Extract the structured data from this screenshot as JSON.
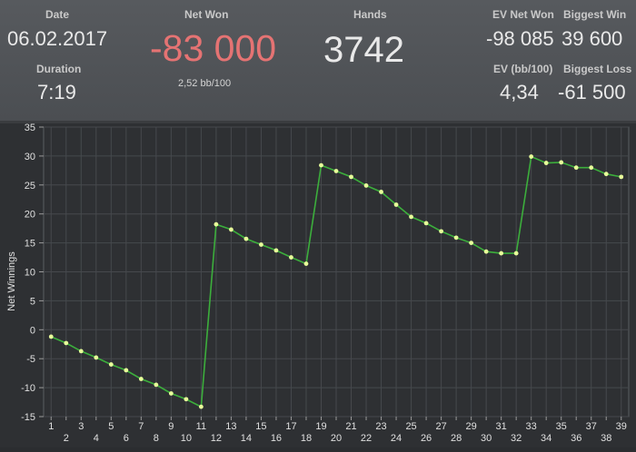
{
  "stats": {
    "date_label": "Date",
    "date_value": "06.02.2017",
    "duration_label": "Duration",
    "duration_value": "7:19",
    "net_won_label": "Net Won",
    "net_won_value": "-83 000",
    "net_won_sub": "2,52 bb/100",
    "hands_label": "Hands",
    "hands_value": "3742",
    "ev_net_won_label": "EV Net Won",
    "ev_net_won_value": "-98 085",
    "biggest_win_label": "Biggest Win",
    "biggest_win_value": "39 600",
    "ev_bb_label": "EV (bb/100)",
    "ev_bb_value": "4,34",
    "biggest_loss_label": "Biggest Loss",
    "biggest_loss_value": "-61 500"
  },
  "colors": {
    "negative": "#e57373",
    "line": "#3cae3c",
    "point": "#e8ff9a"
  },
  "chart_data": {
    "type": "line",
    "ylabel": "Net Winnings",
    "xlabel": "",
    "ylim": [
      -15,
      35
    ],
    "y_ticks": [
      -15,
      -10,
      -5,
      0,
      5,
      10,
      15,
      20,
      25,
      30,
      35
    ],
    "x_ticks": [
      1,
      2,
      3,
      4,
      5,
      6,
      7,
      8,
      9,
      10,
      11,
      12,
      13,
      14,
      15,
      16,
      17,
      18,
      19,
      20,
      21,
      22,
      23,
      24,
      25,
      26,
      27,
      28,
      29,
      30,
      31,
      32,
      33,
      34,
      35,
      36,
      37,
      38,
      39
    ],
    "grid": true,
    "series": [
      {
        "x": [
          1,
          2,
          3,
          4,
          5,
          6,
          7,
          8,
          9,
          10,
          11,
          12,
          13,
          14,
          15,
          16,
          17,
          18,
          19,
          20,
          21,
          22,
          23,
          24,
          25,
          26,
          27,
          28,
          29,
          30,
          31,
          32,
          33,
          34,
          35,
          36,
          37,
          38,
          39
        ],
        "values": [
          -1.2,
          -2.3,
          -3.7,
          -4.8,
          -6.0,
          -7.0,
          -8.5,
          -9.5,
          -11.0,
          -12.0,
          -13.3,
          18.2,
          17.3,
          15.7,
          14.7,
          13.7,
          12.5,
          11.4,
          28.4,
          27.4,
          26.4,
          24.9,
          23.8,
          21.6,
          19.5,
          18.4,
          17.0,
          15.9,
          15.0,
          13.5,
          13.2,
          13.2,
          29.9,
          28.8,
          28.9,
          28.0,
          28.0,
          26.9,
          26.4
        ]
      }
    ]
  }
}
